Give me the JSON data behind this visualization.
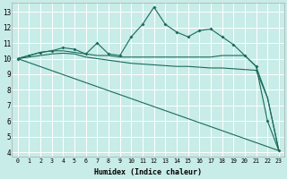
{
  "xlabel": "Humidex (Indice chaleur)",
  "bg_color": "#c8ece8",
  "grid_color": "#ffffff",
  "line_color": "#1a6b5a",
  "xlim": [
    -0.5,
    23.5
  ],
  "ylim": [
    3.7,
    13.6
  ],
  "xticks": [
    0,
    1,
    2,
    3,
    4,
    5,
    6,
    7,
    8,
    9,
    10,
    11,
    12,
    13,
    14,
    15,
    16,
    17,
    18,
    19,
    20,
    21,
    22,
    23
  ],
  "yticks": [
    4,
    5,
    6,
    7,
    8,
    9,
    10,
    11,
    12,
    13
  ],
  "series1_x": [
    0,
    1,
    2,
    3,
    4,
    5,
    6,
    7,
    8,
    9,
    10,
    11,
    12,
    13,
    14,
    15,
    16,
    17,
    18,
    19,
    20,
    21,
    22,
    23
  ],
  "series1_y": [
    10.0,
    10.2,
    10.4,
    10.5,
    10.7,
    10.6,
    10.3,
    11.0,
    10.3,
    10.2,
    11.4,
    12.2,
    13.3,
    12.2,
    11.7,
    11.4,
    11.8,
    11.9,
    11.4,
    10.9,
    10.2,
    9.5,
    6.0,
    4.1
  ],
  "series2_x": [
    0,
    1,
    2,
    3,
    4,
    5,
    6,
    7,
    8,
    9,
    10,
    11,
    12,
    13,
    14,
    15,
    16,
    17,
    18,
    19,
    20,
    21,
    22,
    23
  ],
  "series2_y": [
    10.0,
    10.2,
    10.4,
    10.5,
    10.5,
    10.4,
    10.3,
    10.2,
    10.2,
    10.1,
    10.1,
    10.1,
    10.1,
    10.1,
    10.1,
    10.1,
    10.1,
    10.1,
    10.2,
    10.2,
    10.2,
    9.5,
    7.5,
    4.1
  ],
  "series3_x": [
    0,
    1,
    2,
    3,
    4,
    5,
    6,
    7,
    8,
    9,
    10,
    11,
    12,
    13,
    14,
    15,
    16,
    17,
    18,
    19,
    20,
    21,
    22,
    23
  ],
  "series3_y": [
    10.0,
    10.1,
    10.2,
    10.3,
    10.35,
    10.3,
    10.1,
    10.0,
    9.9,
    9.8,
    9.7,
    9.65,
    9.6,
    9.55,
    9.5,
    9.5,
    9.45,
    9.4,
    9.4,
    9.35,
    9.3,
    9.25,
    7.5,
    4.1
  ],
  "series4_x": [
    0,
    23
  ],
  "series4_y": [
    10.0,
    4.1
  ]
}
